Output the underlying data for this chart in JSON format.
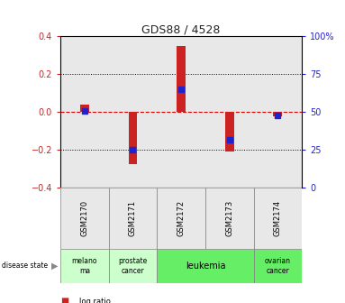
{
  "title": "GDS88 / 4528",
  "samples": [
    "GSM2170",
    "GSM2171",
    "GSM2172",
    "GSM2173",
    "GSM2174"
  ],
  "log_ratio": [
    0.04,
    -0.275,
    0.35,
    -0.21,
    -0.02
  ],
  "percentile_rank": [
    51,
    25,
    65,
    32,
    48
  ],
  "disease_states": [
    {
      "label": "melano\nma",
      "cols": [
        0
      ],
      "color": "#ccffcc"
    },
    {
      "label": "prostate\ncancer",
      "cols": [
        1
      ],
      "color": "#ccffcc"
    },
    {
      "label": "leukemia",
      "cols": [
        2,
        3
      ],
      "color": "#66ee66"
    },
    {
      "label": "ovarian\ncancer",
      "cols": [
        4
      ],
      "color": "#66ee66"
    }
  ],
  "ylim_left": [
    -0.4,
    0.4
  ],
  "ylim_right": [
    0,
    100
  ],
  "yticks_left": [
    -0.4,
    -0.2,
    0.0,
    0.2,
    0.4
  ],
  "yticks_right": [
    0,
    25,
    50,
    75,
    100
  ],
  "bar_color": "#cc2222",
  "dot_color": "#2222cc",
  "bg_color": "#e8e8e8",
  "zero_line_color": "#dd0000",
  "title_color": "#222222",
  "left_tick_color": "#cc2222",
  "right_tick_color": "#2222cc",
  "bar_width": 0.18
}
